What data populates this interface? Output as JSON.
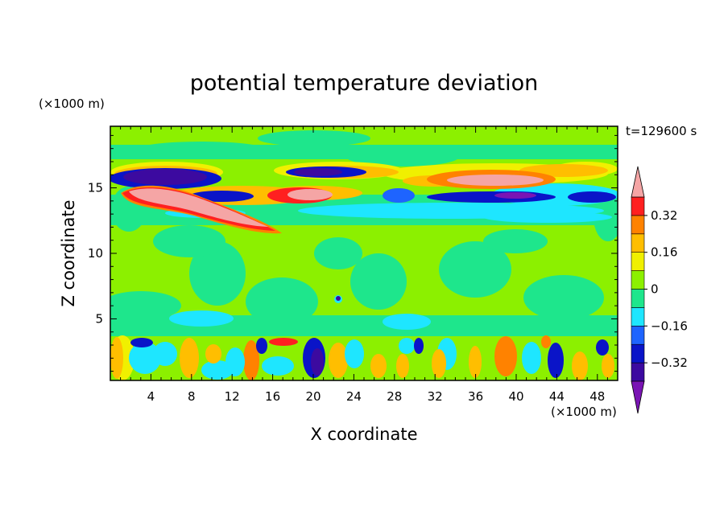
{
  "chart_data": {
    "type": "heatmap",
    "title": "potential temperature deviation",
    "xlabel": "X coordinate",
    "ylabel": "Z coordinate",
    "x_unit": "(×1000 m)",
    "y_unit": "(×1000 m)",
    "time_label": "t=129600 s",
    "xlim": [
      0,
      50
    ],
    "ylim": [
      0.3,
      19.7
    ],
    "x_ticks": [
      "4",
      "8",
      "12",
      "16",
      "20",
      "24",
      "28",
      "32",
      "36",
      "40",
      "44",
      "48"
    ],
    "x_tick_values": [
      4,
      8,
      12,
      16,
      20,
      24,
      28,
      32,
      36,
      40,
      44,
      48
    ],
    "y_ticks": [
      "5",
      "10",
      "15"
    ],
    "y_tick_values": [
      5,
      10,
      15
    ],
    "colorbar": {
      "levels": [
        -0.48,
        -0.4,
        -0.32,
        -0.24,
        -0.16,
        -0.08,
        0,
        0.08,
        0.16,
        0.24,
        0.32,
        0.4,
        0.48
      ],
      "labels": [
        "0.32",
        "0.16",
        "0",
        "−0.16",
        "−0.32"
      ],
      "label_values": [
        0.32,
        0.16,
        0,
        -0.16,
        -0.32
      ],
      "colors": [
        "#7a14b4",
        "#3c0aa0",
        "#0a14c8",
        "#1e64ff",
        "#1ee6ff",
        "#1ee68c",
        "#8cf000",
        "#f0f000",
        "#ffbe00",
        "#ff8200",
        "#ff2020",
        "#f5a5a5"
      ]
    },
    "features": [
      {
        "x": 6.2,
        "z": 16.0,
        "value": -0.42
      },
      {
        "x": 7.5,
        "z": 13.6,
        "value": 0.46
      },
      {
        "x": 4.5,
        "z": 14.8,
        "value": 0.36
      },
      {
        "x": 22.0,
        "z": 14.7,
        "value": 0.44
      },
      {
        "x": 20.5,
        "z": 16.3,
        "value": -0.38
      },
      {
        "x": 39.0,
        "z": 15.7,
        "value": 0.46
      },
      {
        "x": 40.0,
        "z": 14.5,
        "value": -0.36
      },
      {
        "x": 44.0,
        "z": 16.4,
        "value": 0.34
      },
      {
        "x": 27.0,
        "z": 14.4,
        "value": -0.26
      },
      {
        "x": 45.0,
        "z": 14.3,
        "value": -0.32
      },
      {
        "x": 10.0,
        "z": 14.0,
        "value": -0.3
      },
      {
        "x": 35.0,
        "z": 13.0,
        "value": -0.08
      },
      {
        "x": 20.0,
        "z": 1.5,
        "value": -0.46
      },
      {
        "x": 44.5,
        "z": 2.0,
        "value": -0.35
      },
      {
        "x": 39.0,
        "z": 2.5,
        "value": 0.26
      },
      {
        "x": 3.5,
        "z": 3.0,
        "value": -0.32
      },
      {
        "x": 16.0,
        "z": 3.2,
        "value": 0.3
      },
      {
        "x": 30.5,
        "z": 2.8,
        "value": -0.32
      },
      {
        "x": 23.0,
        "z": 1.8,
        "value": 0.2
      },
      {
        "x": 9.5,
        "z": 2.0,
        "value": 0.2
      },
      {
        "x": 5.0,
        "z": 6.0,
        "value": -0.07
      },
      {
        "x": 26.0,
        "z": 8.0,
        "value": -0.06
      },
      {
        "x": 40.0,
        "z": 9.0,
        "value": -0.06
      },
      {
        "x": 12.0,
        "z": 10.5,
        "value": -0.05
      },
      {
        "x": 30.0,
        "z": 18.5,
        "value": -0.05
      }
    ]
  }
}
